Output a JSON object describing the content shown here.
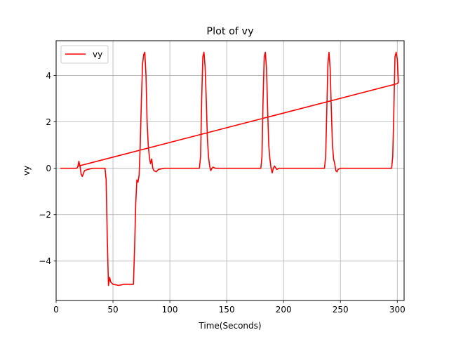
{
  "chart_data": {
    "type": "line",
    "title": "Plot of vy",
    "xlabel": "Time(Seconds)",
    "ylabel": "vy",
    "xlim": [
      0,
      306
    ],
    "ylim": [
      -5.7,
      5.5
    ],
    "xticks": [
      0,
      50,
      100,
      150,
      200,
      250,
      300
    ],
    "yticks": [
      -4,
      -2,
      0,
      2,
      4
    ],
    "ytick_labels": [
      "−4",
      "−2",
      "0",
      "2",
      "4"
    ],
    "grid": true,
    "legend": {
      "position": "top-left",
      "entries": [
        "vy"
      ]
    },
    "colors": {
      "series": "#ff0000",
      "grid": "#b0b0b0",
      "axes": "#000000"
    },
    "series": [
      {
        "name": "vy",
        "color": "#ff0000",
        "x": [
          4,
          18,
          19,
          20,
          21,
          22,
          23,
          25,
          28,
          32,
          35,
          40,
          43,
          44,
          45,
          46,
          47,
          48,
          50,
          55,
          60,
          65,
          68,
          69,
          70,
          71,
          72,
          73,
          74,
          75,
          76,
          77,
          78,
          79,
          80,
          81,
          82,
          83,
          84,
          85,
          86,
          88,
          90,
          95,
          100,
          110,
          120,
          126,
          127,
          128,
          129,
          130,
          131,
          132,
          133,
          134,
          135,
          136,
          137,
          138,
          140,
          145,
          150,
          160,
          170,
          180,
          181,
          182,
          183,
          184,
          185,
          186,
          187,
          188,
          189,
          190,
          191,
          192,
          194,
          196,
          200,
          210,
          220,
          230,
          236,
          237,
          238,
          239,
          240,
          241,
          242,
          243,
          244,
          245,
          246,
          247,
          248,
          250,
          255,
          260,
          270,
          280,
          290,
          295,
          296,
          297,
          298,
          299,
          300,
          301,
          300,
          20
        ],
        "y": [
          0.0,
          0.0,
          0.05,
          0.3,
          0.1,
          -0.25,
          -0.35,
          -0.1,
          -0.05,
          0.0,
          0.0,
          0.0,
          0.0,
          -0.5,
          -3.0,
          -5.05,
          -4.7,
          -4.9,
          -5.0,
          -5.05,
          -5.0,
          -5.0,
          -5.0,
          -3.5,
          -1.5,
          -0.5,
          -0.6,
          -0.3,
          1.0,
          3.0,
          4.5,
          4.9,
          5.0,
          4.0,
          2.0,
          1.0,
          0.5,
          0.2,
          0.4,
          0.0,
          -0.1,
          -0.15,
          -0.05,
          0.0,
          0.0,
          0.0,
          0.0,
          0.0,
          0.5,
          3.0,
          4.8,
          5.0,
          4.4,
          3.0,
          1.3,
          0.5,
          0.1,
          -0.1,
          0.0,
          0.05,
          0.0,
          0.0,
          0.0,
          0.0,
          0.0,
          0.0,
          0.5,
          3.0,
          4.8,
          5.0,
          4.3,
          2.5,
          1.0,
          0.4,
          0.0,
          -0.2,
          0.0,
          0.1,
          -0.05,
          0.0,
          0.0,
          0.0,
          0.0,
          0.0,
          0.0,
          0.5,
          2.5,
          4.5,
          5.0,
          4.3,
          2.5,
          1.0,
          0.4,
          0.2,
          -0.1,
          -0.15,
          -0.05,
          0.0,
          0.0,
          0.0,
          0.0,
          0.0,
          0.0,
          0.0,
          0.5,
          2.5,
          4.8,
          5.0,
          4.7,
          3.7,
          3.65,
          0.1
        ]
      }
    ]
  }
}
